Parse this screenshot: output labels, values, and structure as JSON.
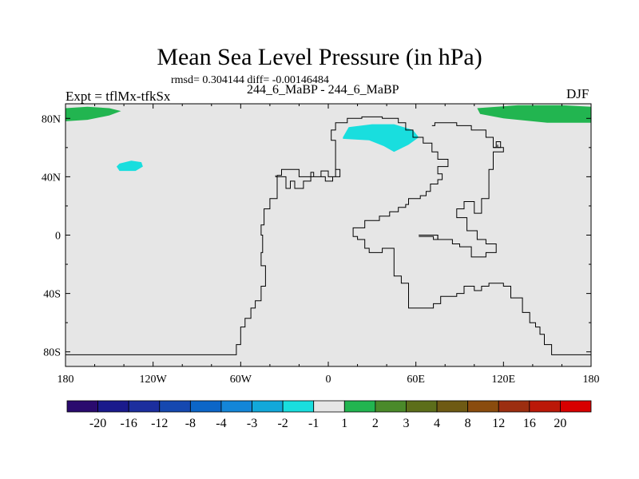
{
  "chart_data": {
    "type": "contour-map",
    "title": "Mean Sea Level Pressure (in hPa)",
    "stats": "rmsd= 0.304144 diff= -0.00146484",
    "left_label": "Expt = tflMx-tfkSx",
    "center_label": "244_6_MaBP - 244_6_MaBP",
    "right_label": "DJF",
    "x_range": [
      -180,
      180
    ],
    "y_range": [
      -90,
      90
    ],
    "x_ticks": [
      {
        "value": -180,
        "label": "180"
      },
      {
        "value": -120,
        "label": "120W"
      },
      {
        "value": -60,
        "label": "60W"
      },
      {
        "value": 0,
        "label": "0"
      },
      {
        "value": 60,
        "label": "60E"
      },
      {
        "value": 120,
        "label": "120E"
      },
      {
        "value": 180,
        "label": "180"
      }
    ],
    "y_ticks": [
      {
        "value": 80,
        "label": "80N"
      },
      {
        "value": 40,
        "label": "40N"
      },
      {
        "value": 0,
        "label": "0"
      },
      {
        "value": -40,
        "label": "40S"
      },
      {
        "value": -80,
        "label": "80S"
      }
    ],
    "colorbar": {
      "colors": [
        "#2a0a6e",
        "#1a1a8c",
        "#1c2e9e",
        "#1548b0",
        "#0c66c8",
        "#1486d8",
        "#12a8da",
        "#19dede",
        "#e6e6e6",
        "#22b550",
        "#4a8a2a",
        "#5c6e1a",
        "#6e5a14",
        "#8a4c0e",
        "#9c2e10",
        "#bb1808",
        "#d80000"
      ],
      "labels": [
        "-20",
        "-16",
        "-12",
        "-8",
        "-4",
        "-3",
        "-2",
        "-1",
        "1",
        "2",
        "3",
        "4",
        "8",
        "12",
        "16",
        "20"
      ]
    },
    "filled_regions": [
      {
        "category": "1 to 2",
        "color": "#22b550",
        "points": [
          [
            -180,
            78
          ],
          [
            -180,
            87
          ],
          [
            -165,
            88
          ],
          [
            -150,
            87
          ],
          [
            -142,
            85
          ],
          [
            -150,
            82
          ],
          [
            -165,
            79
          ]
        ]
      },
      {
        "category": "1 to 2",
        "color": "#22b550",
        "points": [
          [
            180,
            77
          ],
          [
            180,
            88
          ],
          [
            160,
            89
          ],
          [
            130,
            89
          ],
          [
            102,
            87
          ],
          [
            104,
            83
          ],
          [
            120,
            80
          ],
          [
            150,
            77
          ]
        ]
      },
      {
        "category": "-2 to -1",
        "color": "#19dede",
        "points": [
          [
            -143,
            49
          ],
          [
            -135,
            51
          ],
          [
            -128,
            50
          ],
          [
            -127,
            47
          ],
          [
            -132,
            44
          ],
          [
            -143,
            44
          ],
          [
            -145,
            47
          ]
        ]
      },
      {
        "category": "-2 to -1",
        "color": "#19dede",
        "points": [
          [
            10,
            67
          ],
          [
            14,
            74
          ],
          [
            30,
            76
          ],
          [
            45,
            76
          ],
          [
            58,
            72
          ],
          [
            62,
            67
          ],
          [
            55,
            62
          ],
          [
            45,
            57
          ],
          [
            38,
            61
          ],
          [
            28,
            65
          ],
          [
            10,
            66
          ]
        ]
      }
    ],
    "outline_polygons": [
      [
        [
          -180,
          -82
        ],
        [
          -63,
          -82
        ],
        [
          -63,
          -75
        ],
        [
          -60,
          -75
        ],
        [
          -60,
          -63
        ],
        [
          -57,
          -63
        ],
        [
          -57,
          -57
        ],
        [
          -53,
          -57
        ],
        [
          -53,
          -50
        ],
        [
          -50,
          -50
        ],
        [
          -50,
          -45
        ],
        [
          -46,
          -45
        ],
        [
          -46,
          -35
        ],
        [
          -43,
          -35
        ],
        [
          -43,
          -21
        ],
        [
          -46,
          -21
        ],
        [
          -46,
          -12
        ],
        [
          -45,
          -12
        ],
        [
          -45,
          0
        ],
        [
          -46,
          0
        ],
        [
          -46,
          7
        ],
        [
          -44,
          7
        ],
        [
          -44,
          18
        ],
        [
          -40,
          18
        ],
        [
          -40,
          25
        ],
        [
          -35,
          25
        ],
        [
          -35,
          41
        ],
        [
          -32,
          41
        ],
        [
          -32,
          45
        ],
        [
          -20,
          45
        ],
        [
          -20,
          40
        ],
        [
          -5,
          40
        ],
        [
          -5,
          44
        ],
        [
          0,
          44
        ],
        [
          0,
          40
        ],
        [
          5,
          40
        ],
        [
          5,
          45
        ],
        [
          8,
          45
        ],
        [
          8,
          40
        ],
        [
          3,
          40
        ],
        [
          3,
          37
        ],
        [
          -2,
          37
        ],
        [
          -2,
          40
        ],
        [
          -10,
          40
        ],
        [
          -10,
          43
        ],
        [
          -12,
          43
        ],
        [
          -12,
          37
        ],
        [
          -17,
          37
        ],
        [
          -17,
          32
        ],
        [
          -23,
          32
        ],
        [
          -23,
          37
        ],
        [
          -26,
          37
        ],
        [
          -26,
          32
        ],
        [
          -29,
          32
        ],
        [
          -29,
          40
        ],
        [
          -36,
          40
        ],
        [
          -36,
          41
        ]
      ],
      [
        [
          5,
          45
        ],
        [
          5,
          65
        ],
        [
          2,
          65
        ],
        [
          2,
          72
        ],
        [
          5,
          72
        ],
        [
          5,
          77
        ],
        [
          13,
          77
        ],
        [
          13,
          80
        ],
        [
          23,
          80
        ],
        [
          23,
          81
        ],
        [
          37,
          81
        ],
        [
          37,
          80
        ],
        [
          48,
          80
        ],
        [
          48,
          77
        ],
        [
          53,
          77
        ],
        [
          53,
          72
        ],
        [
          58,
          72
        ],
        [
          58,
          67
        ],
        [
          65,
          67
        ],
        [
          65,
          63
        ],
        [
          71,
          63
        ],
        [
          71,
          57
        ],
        [
          75,
          57
        ],
        [
          75,
          52
        ],
        [
          82,
          52
        ],
        [
          82,
          47
        ],
        [
          75,
          47
        ],
        [
          75,
          42
        ],
        [
          78,
          42
        ],
        [
          78,
          38
        ],
        [
          75,
          38
        ],
        [
          75,
          35
        ],
        [
          70,
          35
        ],
        [
          70,
          30
        ],
        [
          67,
          30
        ],
        [
          67,
          27
        ],
        [
          63,
          27
        ],
        [
          63,
          25
        ],
        [
          55,
          25
        ],
        [
          55,
          21
        ],
        [
          53,
          21
        ],
        [
          53,
          19
        ],
        [
          48,
          19
        ],
        [
          48,
          16
        ],
        [
          42,
          16
        ],
        [
          42,
          13
        ],
        [
          35,
          13
        ],
        [
          35,
          10
        ],
        [
          25,
          10
        ],
        [
          25,
          5
        ],
        [
          17,
          5
        ],
        [
          17,
          -1
        ],
        [
          20,
          -1
        ],
        [
          20,
          -3
        ],
        [
          25,
          -3
        ],
        [
          25,
          -9
        ],
        [
          28,
          -9
        ],
        [
          28,
          -12
        ],
        [
          37,
          -12
        ],
        [
          37,
          -9
        ],
        [
          45,
          -9
        ],
        [
          45,
          -28
        ],
        [
          50,
          -28
        ],
        [
          50,
          -33
        ],
        [
          55,
          -33
        ],
        [
          55,
          -50
        ],
        [
          72,
          -50
        ],
        [
          72,
          -47
        ],
        [
          77,
          -47
        ],
        [
          77,
          -42
        ],
        [
          88,
          -42
        ],
        [
          88,
          -40
        ],
        [
          93,
          -40
        ],
        [
          93,
          -35
        ],
        [
          100,
          -35
        ],
        [
          100,
          -38
        ],
        [
          105,
          -38
        ],
        [
          105,
          -35
        ],
        [
          110,
          -35
        ],
        [
          110,
          -33
        ],
        [
          120,
          -33
        ],
        [
          120,
          -35
        ],
        [
          125,
          -35
        ],
        [
          125,
          -43
        ],
        [
          133,
          -43
        ],
        [
          133,
          -53
        ],
        [
          138,
          -53
        ],
        [
          138,
          -60
        ],
        [
          142,
          -60
        ],
        [
          142,
          -63
        ],
        [
          145,
          -63
        ],
        [
          145,
          -68
        ],
        [
          148,
          -68
        ],
        [
          148,
          -75
        ],
        [
          153,
          -75
        ],
        [
          153,
          -82
        ],
        [
          180,
          -82
        ]
      ],
      [
        [
          62,
          0
        ],
        [
          75,
          0
        ],
        [
          75,
          -3
        ],
        [
          85,
          -3
        ],
        [
          85,
          -6
        ],
        [
          90,
          -6
        ],
        [
          90,
          -8
        ],
        [
          98,
          -8
        ],
        [
          98,
          -15
        ],
        [
          108,
          -15
        ],
        [
          108,
          -12
        ],
        [
          115,
          -12
        ],
        [
          115,
          -6
        ],
        [
          108,
          -6
        ],
        [
          108,
          -3
        ],
        [
          102,
          -3
        ],
        [
          102,
          3
        ],
        [
          95,
          3
        ],
        [
          95,
          12
        ],
        [
          88,
          12
        ],
        [
          88,
          18
        ],
        [
          93,
          18
        ],
        [
          93,
          23
        ],
        [
          100,
          23
        ],
        [
          100,
          15
        ],
        [
          105,
          15
        ],
        [
          105,
          25
        ],
        [
          110,
          25
        ],
        [
          110,
          45
        ],
        [
          113,
          45
        ],
        [
          113,
          57
        ],
        [
          120,
          57
        ],
        [
          120,
          60
        ],
        [
          113,
          60
        ],
        [
          113,
          67
        ],
        [
          108,
          67
        ],
        [
          108,
          72
        ],
        [
          98,
          72
        ],
        [
          98,
          75
        ],
        [
          88,
          75
        ],
        [
          88,
          77
        ],
        [
          73,
          77
        ],
        [
          73,
          75
        ],
        [
          71,
          75
        ]
      ],
      [
        [
          113,
          60
        ],
        [
          115,
          60
        ],
        [
          115,
          64
        ],
        [
          118,
          64
        ],
        [
          118,
          60
        ],
        [
          116,
          60
        ],
        [
          116,
          62
        ]
      ],
      [
        [
          62,
          0
        ],
        [
          75,
          0
        ],
        [
          75,
          -3
        ],
        [
          72,
          -3
        ],
        [
          72,
          -1
        ],
        [
          62,
          -1
        ]
      ]
    ]
  }
}
